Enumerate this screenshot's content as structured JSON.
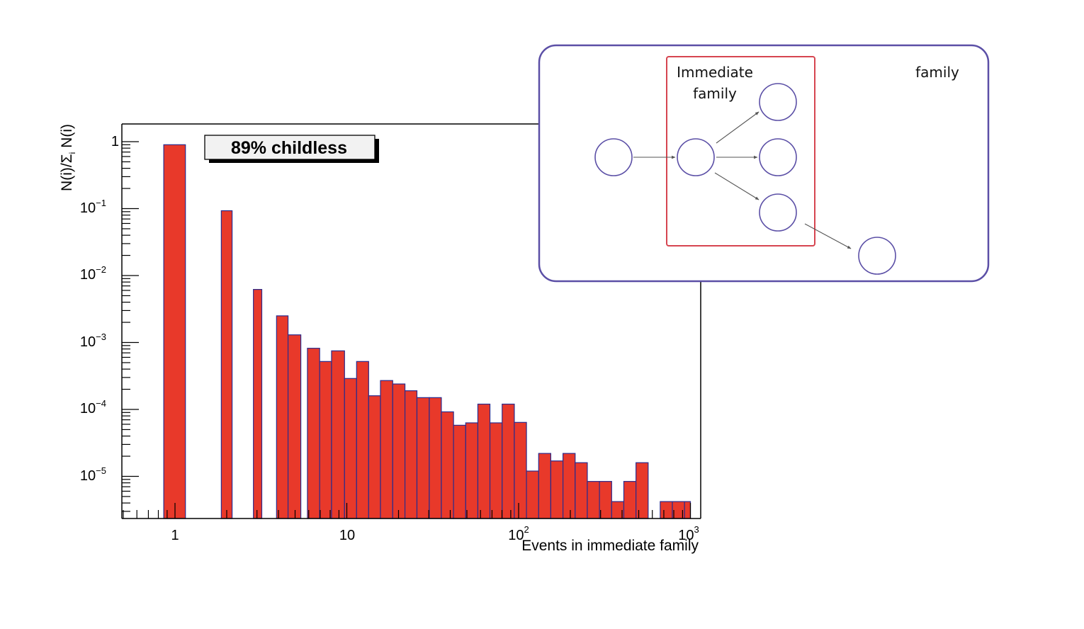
{
  "chart_data": {
    "type": "bar",
    "title": "",
    "xlabel": "Events in immediate family",
    "ylabel_parts": [
      "N(i)/Σ",
      "i",
      " N(i)"
    ],
    "xscale": "log",
    "yscale": "log",
    "xlim": [
      0.5,
      1000
    ],
    "ylim": [
      2.5e-06,
      1.5
    ],
    "x_tick_labels": [
      {
        "value": 1,
        "base": "1",
        "exp": ""
      },
      {
        "value": 10,
        "base": "10",
        "exp": ""
      },
      {
        "value": 100,
        "base": "10",
        "exp": "2"
      },
      {
        "value": 1000,
        "base": "10",
        "exp": "3"
      }
    ],
    "y_tick_labels": [
      {
        "value": 1,
        "base": "1",
        "exp": ""
      },
      {
        "value": 0.1,
        "base": "10",
        "exp": "−1"
      },
      {
        "value": 0.01,
        "base": "10",
        "exp": "−2"
      },
      {
        "value": 0.001,
        "base": "10",
        "exp": "−3"
      },
      {
        "value": 0.0001,
        "base": "10",
        "exp": "−4"
      },
      {
        "value": 1e-05,
        "base": "10",
        "exp": "−5"
      }
    ],
    "bins": [
      {
        "lo": 0.86,
        "hi": 1.15,
        "value": 0.9
      },
      {
        "lo": 1.86,
        "hi": 2.15,
        "value": 0.093
      },
      {
        "lo": 2.86,
        "hi": 3.2,
        "value": 0.0062
      },
      {
        "lo": 3.9,
        "hi": 4.55,
        "value": 0.0025
      },
      {
        "lo": 4.55,
        "hi": 5.4,
        "value": 0.0013
      },
      {
        "lo": 5.9,
        "hi": 6.95,
        "value": 0.00082
      },
      {
        "lo": 6.95,
        "hi": 8.15,
        "value": 0.00052
      },
      {
        "lo": 8.15,
        "hi": 9.7,
        "value": 0.00075
      },
      {
        "lo": 9.7,
        "hi": 11.4,
        "value": 0.00029
      },
      {
        "lo": 11.4,
        "hi": 13.4,
        "value": 0.00052
      },
      {
        "lo": 13.4,
        "hi": 15.7,
        "value": 0.00016
      },
      {
        "lo": 15.7,
        "hi": 18.5,
        "value": 0.00027
      },
      {
        "lo": 18.5,
        "hi": 21.8,
        "value": 0.00024
      },
      {
        "lo": 21.8,
        "hi": 25.6,
        "value": 0.00019
      },
      {
        "lo": 25.6,
        "hi": 30.2,
        "value": 0.00015
      },
      {
        "lo": 30.2,
        "hi": 35.5,
        "value": 0.00015
      },
      {
        "lo": 35.5,
        "hi": 41.8,
        "value": 9.2e-05
      },
      {
        "lo": 41.8,
        "hi": 49.2,
        "value": 5.8e-05
      },
      {
        "lo": 49.2,
        "hi": 57.9,
        "value": 6.3e-05
      },
      {
        "lo": 57.9,
        "hi": 68.1,
        "value": 0.00012
      },
      {
        "lo": 68.1,
        "hi": 80.2,
        "value": 6.3e-05
      },
      {
        "lo": 80.2,
        "hi": 94.4,
        "value": 0.00012
      },
      {
        "lo": 94.4,
        "hi": 111.1,
        "value": 6.4e-05
      },
      {
        "lo": 111.1,
        "hi": 130.8,
        "value": 1.2e-05
      },
      {
        "lo": 130.8,
        "hi": 153.9,
        "value": 2.2e-05
      },
      {
        "lo": 153.9,
        "hi": 181.2,
        "value": 1.7e-05
      },
      {
        "lo": 181.2,
        "hi": 213.3,
        "value": 2.2e-05
      },
      {
        "lo": 213.3,
        "hi": 251.1,
        "value": 1.6e-05
      },
      {
        "lo": 251.1,
        "hi": 295.5,
        "value": 8.4e-06
      },
      {
        "lo": 295.5,
        "hi": 347.9,
        "value": 8.4e-06
      },
      {
        "lo": 347.9,
        "hi": 409.5,
        "value": 4.2e-06
      },
      {
        "lo": 409.5,
        "hi": 482.1,
        "value": 8.4e-06
      },
      {
        "lo": 482.1,
        "hi": 567.5,
        "value": 1.6e-05
      },
      {
        "lo": 667,
        "hi": 785,
        "value": 4.2e-06
      },
      {
        "lo": 785,
        "hi": 924,
        "value": 4.2e-06
      },
      {
        "lo": 924,
        "hi": 1000,
        "value": 4.2e-06
      }
    ],
    "fill_color": "#e8392a",
    "outline_color": "#2b2b8c",
    "annotation": "89% childless",
    "inset": {
      "immediate_family_label": [
        "Immediate",
        "family"
      ],
      "family_label": "family",
      "border_color": "#5b4fa6",
      "highlight_color": "#d64550"
    }
  }
}
